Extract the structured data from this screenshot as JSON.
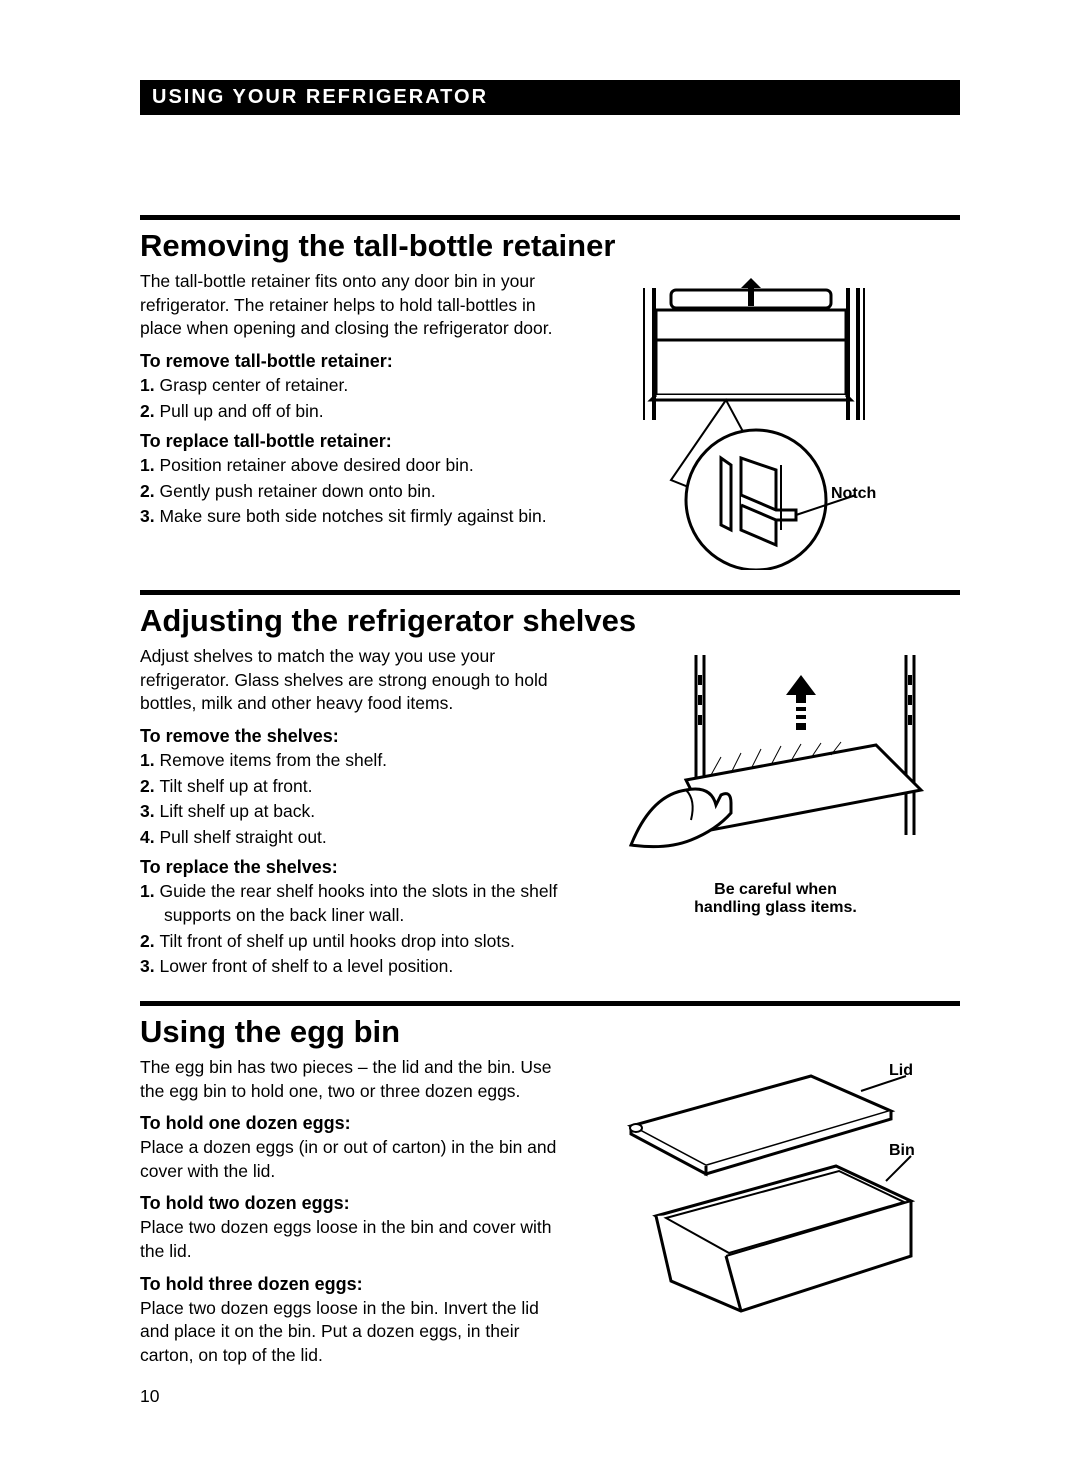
{
  "header_bar": "USING YOUR REFRIGERATOR",
  "page_number": "10",
  "sec1": {
    "title": "Removing the tall-bottle retainer",
    "intro": "The tall-bottle retainer fits onto any door bin in your refrigerator. The retainer helps to hold tall-bottles in place when opening and closing the refrigerator door.",
    "remove_head": "To remove tall-bottle retainer:",
    "remove_steps": [
      "Grasp center of retainer.",
      "Pull up and off of bin."
    ],
    "replace_head": "To replace tall-bottle retainer:",
    "replace_steps": [
      "Position retainer above desired door bin.",
      "Gently push retainer down onto bin.",
      "Make sure both side notches sit firmly against bin."
    ],
    "fig_label_notch": "Notch"
  },
  "sec2": {
    "title": "Adjusting the refrigerator shelves",
    "intro": "Adjust shelves to match the way you use your refrigerator. Glass shelves are strong enough to hold bottles, milk and other heavy food items.",
    "remove_head": "To remove the shelves:",
    "remove_steps": [
      "Remove items from the shelf.",
      "Tilt shelf up at front.",
      "Lift shelf up at back.",
      "Pull shelf straight out."
    ],
    "replace_head": "To replace the shelves:",
    "replace_steps": [
      "Guide the rear shelf hooks into the slots in the shelf supports on the back liner wall.",
      "Tilt front of shelf up until hooks drop into slots.",
      "Lower front of shelf to a level position."
    ],
    "fig_caption_l1": "Be careful when",
    "fig_caption_l2": "handling glass items."
  },
  "sec3": {
    "title": "Using the egg bin",
    "intro": "The egg bin has two pieces – the lid and the bin. Use the egg bin to hold one, two or three dozen eggs.",
    "h1": "To hold one dozen eggs:",
    "p1": "Place a dozen eggs (in or out of carton) in the bin and cover with the lid.",
    "h2": "To hold two dozen eggs:",
    "p2": "Place two dozen eggs loose in the bin and cover with the lid.",
    "h3": "To hold three dozen eggs:",
    "p3": "Place two dozen eggs loose in the bin. Invert the lid and place it on the bin. Put a dozen eggs, in their carton, on top of the lid.",
    "fig_label_lid": "Lid",
    "fig_label_bin": "Bin"
  }
}
